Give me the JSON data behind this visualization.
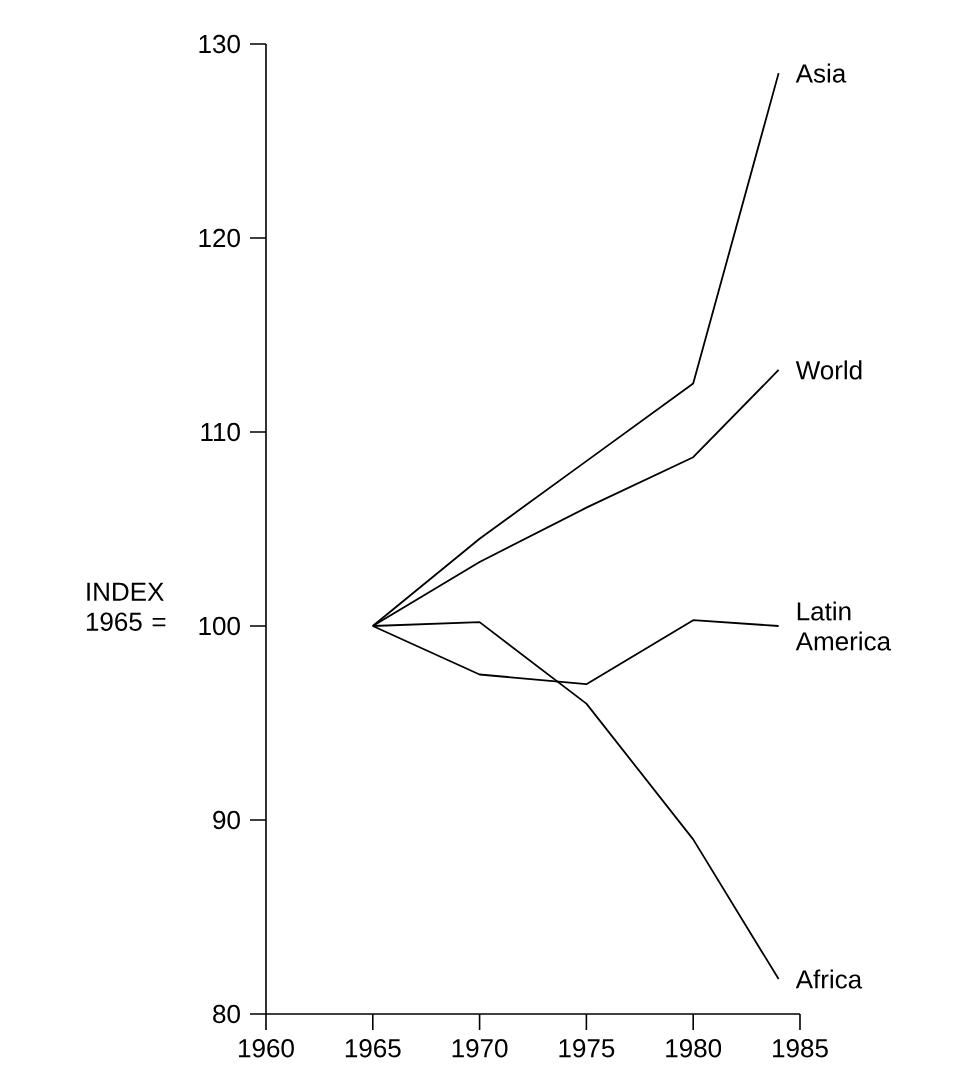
{
  "chart_data": {
    "type": "line",
    "ylabel": "INDEX 1965 =",
    "x": [
      1965,
      1970,
      1975,
      1980,
      1984
    ],
    "series": [
      {
        "name": "Asia",
        "color": "#000000",
        "values": [
          100,
          104.5,
          108.5,
          112.5,
          128.5
        ]
      },
      {
        "name": "World",
        "color": "#000000",
        "values": [
          100,
          103.3,
          106.1,
          108.7,
          113.2
        ]
      },
      {
        "name": "Latin America",
        "color": "#000000",
        "values": [
          100,
          97.5,
          97,
          100.3,
          100
        ]
      },
      {
        "name": "Africa",
        "color": "#000000",
        "values": [
          100,
          100.2,
          96,
          89,
          81.8
        ]
      }
    ],
    "xlim": [
      1960,
      1985
    ],
    "ylim": [
      80,
      130
    ],
    "xticks": [
      1960,
      1965,
      1970,
      1975,
      1980,
      1985
    ],
    "yticks": [
      80,
      90,
      100,
      110,
      120,
      130
    ],
    "grid": false,
    "legend": false,
    "marker": "none",
    "line_style": "solid"
  }
}
